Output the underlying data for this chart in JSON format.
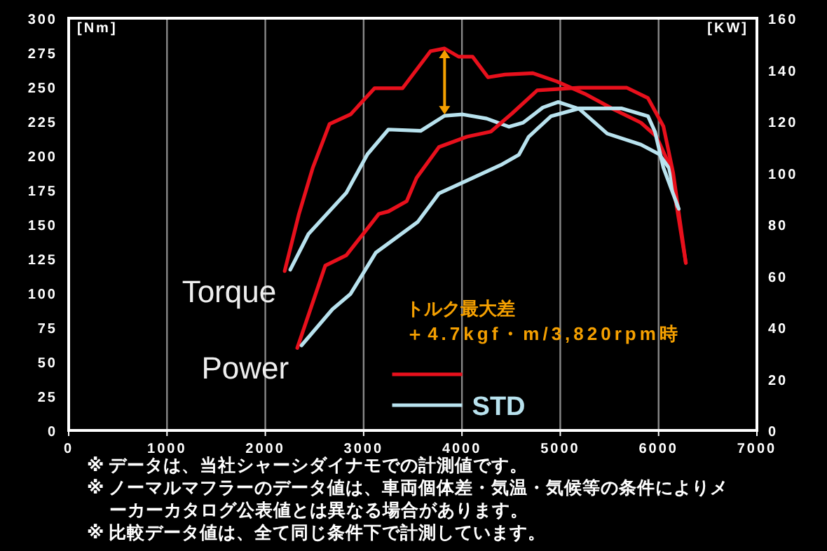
{
  "chart_data": {
    "type": "line",
    "ylabel": "[Nm]",
    "y2label": "[KW]",
    "series": [
      {
        "color": "#e8101c",
        "x": [
          2197,
          2340,
          2482,
          2653,
          2867,
          3110,
          3395,
          3680,
          3823,
          3966,
          4108,
          4265,
          4437,
          4722,
          4964,
          5250,
          5535,
          5820,
          5977,
          6106,
          6191,
          6277
        ],
        "values": [
          116,
          157,
          191,
          223,
          230,
          249,
          249,
          276,
          278,
          272,
          272,
          257,
          259,
          260,
          254,
          245,
          234,
          224,
          214,
          194,
          160,
          122
        ]
      },
      {
        "name": "STD",
        "color": "#b8e2ee",
        "x": [
          2254,
          2439,
          2824,
          3039,
          3252,
          3580,
          3823,
          4008,
          4251,
          4479,
          4622,
          4822,
          4979,
          5193,
          5478,
          5820,
          6006,
          6106,
          6191
        ],
        "values": [
          117,
          143,
          173,
          201,
          219,
          218,
          229,
          230,
          227,
          221,
          224,
          235,
          239,
          234,
          216,
          208,
          201,
          191,
          163
        ]
      },
      {
        "color": "#e8101c",
        "axis": "y2",
        "x": [
          2325,
          2610,
          2824,
          3010,
          3153,
          3252,
          3438,
          3538,
          3766,
          4051,
          4294,
          4508,
          4765,
          5193,
          5678,
          5892,
          6049,
          6148,
          6277
        ],
        "values": [
          32,
          64,
          68,
          77,
          84,
          85,
          89,
          98,
          110,
          114,
          116,
          123,
          132,
          133,
          133,
          129,
          118,
          100,
          65
        ]
      },
      {
        "color": "#b8e2ee",
        "axis": "y2",
        "x": [
          2368,
          2682,
          2867,
          3124,
          3552,
          3766,
          4108,
          4394,
          4579,
          4679,
          4907,
          5193,
          5621,
          5892,
          5963,
          6049,
          6205
        ],
        "values": [
          33,
          47,
          53,
          69,
          81,
          92,
          98,
          103,
          107,
          114,
          122,
          125,
          125,
          122,
          116,
          102,
          86
        ]
      }
    ],
    "xlim": [
      0,
      7000
    ],
    "xticks": [
      0,
      1000,
      2000,
      3000,
      4000,
      5000,
      6000,
      7000
    ],
    "ylim": [
      0,
      300
    ],
    "yticks": [
      0,
      25,
      50,
      75,
      100,
      125,
      150,
      175,
      200,
      225,
      250,
      275,
      300
    ],
    "y2lim": [
      0,
      160
    ],
    "y2ticks": [
      0,
      20,
      40,
      60,
      80,
      100,
      120,
      140,
      160
    ],
    "grid": "x",
    "legend": "bottom right",
    "marker": "none",
    "line_style": "solid",
    "annotations": [
      "Torque",
      "Power",
      "トルク最大差",
      "＋4.7kgf・m/3,820rpm時",
      "※ データは、当社シャーシダイナモでの計測値です。",
      "※ ノーマルマフラーのデータ値は、車両個体差・気温・気候等の条件によりメーカーカタログ公表値とは異なる場合があります。",
      "※ 比較データ値は、全て同じ条件下で計測しています。"
    ]
  }
}
